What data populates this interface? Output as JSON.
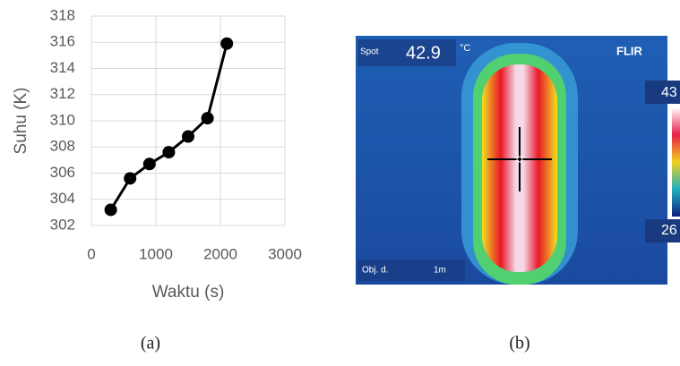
{
  "chart_data": {
    "type": "line",
    "x_label": "Waktu (s)",
    "y_label": "Suhu (K)",
    "x": [
      300,
      600,
      900,
      1200,
      1500,
      1800,
      2100
    ],
    "series": [
      {
        "color": "#000000",
        "values": [
          303.2,
          305.6,
          306.7,
          307.6,
          308.8,
          310.2,
          315.9
        ]
      }
    ],
    "xlim": [
      0,
      3000
    ],
    "xticks": [
      0,
      1000,
      2000,
      3000
    ],
    "ylim": [
      302,
      318
    ],
    "yticks": [
      302,
      304,
      306,
      308,
      310,
      312,
      314,
      316,
      318
    ],
    "grid": true
  },
  "thermal_image": {
    "spot_label": "Spot",
    "spot_value": "42.9",
    "unit": "°C",
    "brand": "FLIR",
    "scale_max": "43",
    "scale_min": "26",
    "distance_label": "Obj. d.",
    "distance_value": "1m"
  },
  "captions": [
    "(a)",
    "(b)"
  ]
}
